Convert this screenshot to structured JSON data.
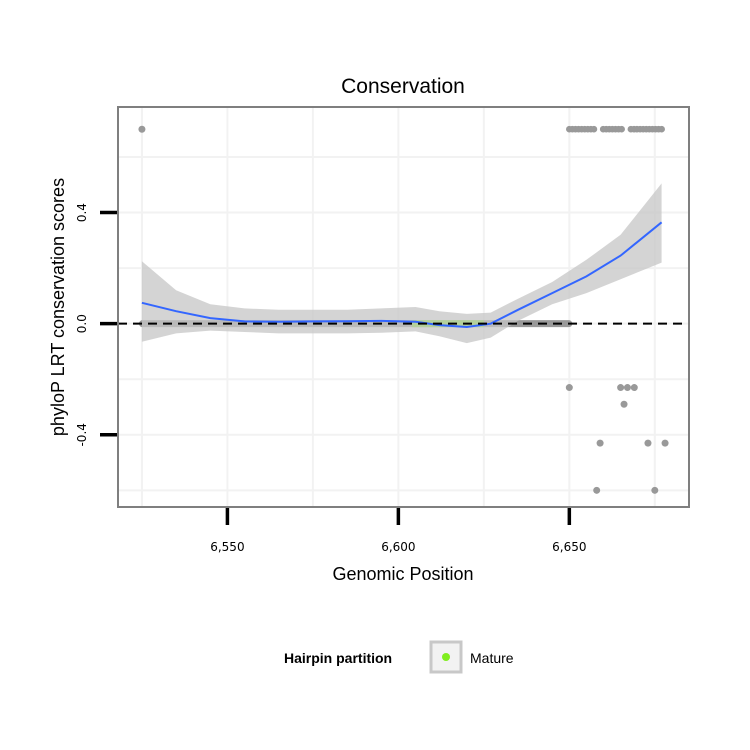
{
  "chart_data": {
    "type": "scatter",
    "title": "Conservation",
    "xlabel": "Genomic Position",
    "ylabel": "phyloP LRT conservation scores",
    "xlim": [
      6518,
      6685
    ],
    "ylim": [
      -0.66,
      0.78
    ],
    "x_ticks": [
      {
        "value": 6550,
        "label": "6,550"
      },
      {
        "value": 6600,
        "label": "6,600"
      },
      {
        "value": 6650,
        "label": "6,650"
      }
    ],
    "y_ticks": [
      {
        "value": -0.4,
        "label": "-0.4"
      },
      {
        "value": 0.0,
        "label": "0.0"
      },
      {
        "value": 0.4,
        "label": "0.4"
      }
    ],
    "grid": true,
    "reference_line": {
      "y": 0,
      "style": "dashed"
    },
    "points": [
      {
        "x": 6525,
        "y": 0.7
      },
      {
        "x": 6650,
        "y": -0.23
      },
      {
        "x": 6659,
        "y": -0.43
      },
      {
        "x": 6658,
        "y": -0.6
      },
      {
        "x": 6665,
        "y": -0.23
      },
      {
        "x": 6667,
        "y": -0.23
      },
      {
        "x": 6666,
        "y": -0.29
      },
      {
        "x": 6669,
        "y": -0.23
      },
      {
        "x": 6673,
        "y": -0.43
      },
      {
        "x": 6675,
        "y": -0.6
      },
      {
        "x": 6678,
        "y": -0.43
      }
    ],
    "zero_band": {
      "x_start": 6525,
      "x_end": 6650,
      "y": 0
    },
    "top_cluster": {
      "x_start": 6650,
      "x_end": 6677,
      "y": 0.7
    },
    "highlight": {
      "name": "Mature",
      "x_start": 6604,
      "x_end": 6625,
      "color": "#80ee1f"
    },
    "smooth_line": {
      "color": "#3366ff",
      "x": [
        6525,
        6535,
        6545,
        6555,
        6565,
        6575,
        6585,
        6595,
        6605,
        6612,
        6620,
        6627,
        6635,
        6645,
        6655,
        6665,
        6677
      ],
      "y": [
        0.075,
        0.045,
        0.02,
        0.008,
        0.007,
        0.008,
        0.009,
        0.01,
        0.007,
        -0.005,
        -0.012,
        0.0,
        0.05,
        0.11,
        0.17,
        0.245,
        0.365
      ],
      "band_lower": [
        -0.065,
        -0.035,
        -0.025,
        -0.03,
        -0.035,
        -0.035,
        -0.035,
        -0.033,
        -0.028,
        -0.045,
        -0.07,
        -0.05,
        0.01,
        0.07,
        0.11,
        0.16,
        0.22
      ],
      "band_upper": [
        0.225,
        0.12,
        0.07,
        0.055,
        0.05,
        0.05,
        0.05,
        0.055,
        0.06,
        0.045,
        0.035,
        0.04,
        0.09,
        0.15,
        0.23,
        0.32,
        0.505
      ]
    },
    "legend": {
      "title": "Hairpin partition",
      "placement": "bottom",
      "entries": [
        {
          "label": "Mature",
          "color": "#80ee1f"
        }
      ]
    },
    "colors": {
      "points": "#999999",
      "band": "#c6c6c6",
      "panel_border": "#7f7f7f",
      "grid": "#f2f2f2"
    }
  }
}
